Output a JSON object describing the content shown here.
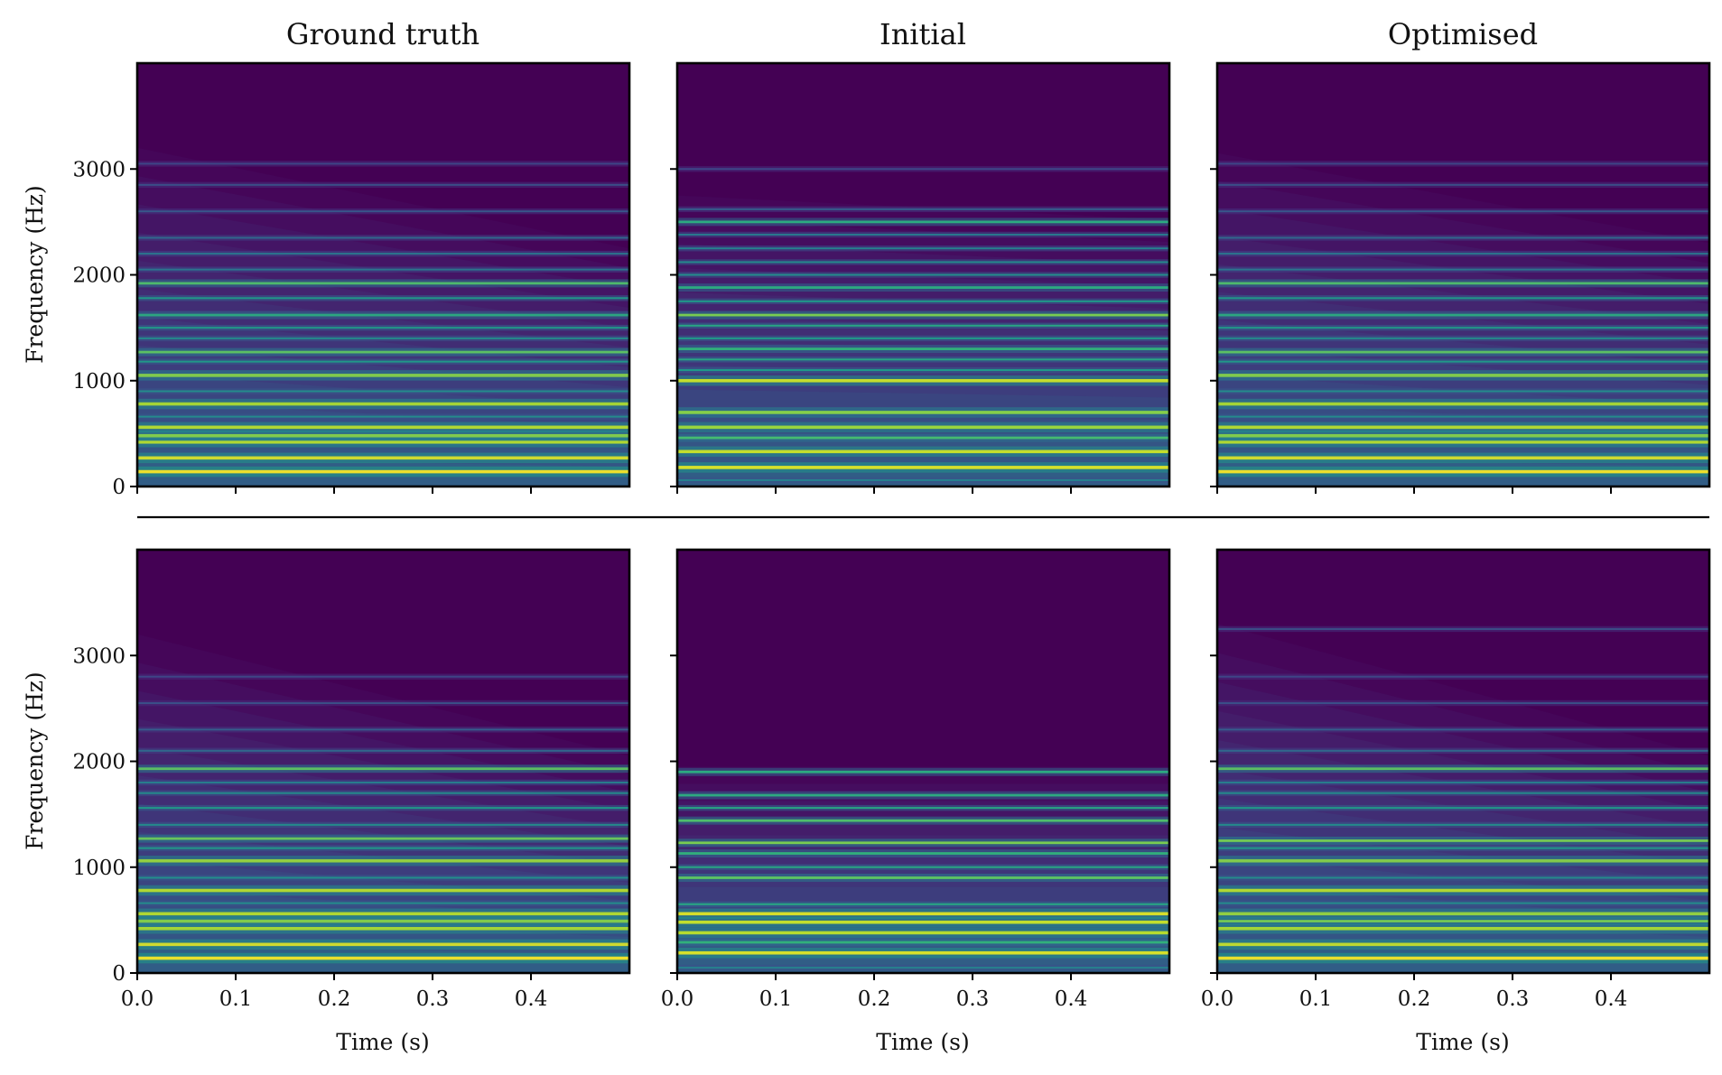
{
  "chart_data": {
    "type": "heatmap",
    "description": "Spectrogram comparison grid (2 examples x 3 columns)",
    "columns": [
      "Ground truth",
      "Initial",
      "Optimised"
    ],
    "xlabel": "Time (s)",
    "ylabel": "Frequency (Hz)",
    "xlim": [
      0,
      0.5
    ],
    "ylim": [
      0,
      4000
    ],
    "xticks": [
      0.0,
      0.1,
      0.2,
      0.3,
      0.4
    ],
    "xtick_labels": [
      "0.0",
      "0.1",
      "0.2",
      "0.3",
      "0.4"
    ],
    "yticks": [
      0,
      1000,
      2000,
      3000
    ],
    "ytick_labels": [
      "0",
      "1000",
      "2000",
      "3000"
    ],
    "colormap": "viridis",
    "background_color": "#440154",
    "row_separator": true,
    "panels": [
      {
        "row": 1,
        "column": "Ground truth",
        "decay": true,
        "cutoff_start_hz": 3200,
        "cutoff_end_hz": 2250,
        "harmonics": [
          {
            "f": 140,
            "v": 1.0
          },
          {
            "f": 270,
            "v": 0.95
          },
          {
            "f": 420,
            "v": 0.9
          },
          {
            "f": 480,
            "v": 0.82
          },
          {
            "f": 560,
            "v": 0.9
          },
          {
            "f": 660,
            "v": 0.5
          },
          {
            "f": 780,
            "v": 0.88
          },
          {
            "f": 900,
            "v": 0.5
          },
          {
            "f": 1050,
            "v": 0.82
          },
          {
            "f": 1180,
            "v": 0.55
          },
          {
            "f": 1270,
            "v": 0.75
          },
          {
            "f": 1400,
            "v": 0.5
          },
          {
            "f": 1500,
            "v": 0.55
          },
          {
            "f": 1620,
            "v": 0.62
          },
          {
            "f": 1780,
            "v": 0.55
          },
          {
            "f": 1920,
            "v": 0.72
          },
          {
            "f": 2050,
            "v": 0.4
          },
          {
            "f": 2200,
            "v": 0.4
          },
          {
            "f": 2350,
            "v": 0.35
          },
          {
            "f": 2600,
            "v": 0.28
          },
          {
            "f": 2850,
            "v": 0.25
          },
          {
            "f": 3050,
            "v": 0.22
          }
        ]
      },
      {
        "row": 1,
        "column": "Initial",
        "decay": false,
        "cutoff_start_hz": 2750,
        "cutoff_end_hz": 2520,
        "harmonics": [
          {
            "f": 60,
            "v": 0.45
          },
          {
            "f": 180,
            "v": 0.95
          },
          {
            "f": 330,
            "v": 0.92
          },
          {
            "f": 460,
            "v": 0.7
          },
          {
            "f": 560,
            "v": 0.85
          },
          {
            "f": 700,
            "v": 0.82
          },
          {
            "f": 1000,
            "v": 0.92
          },
          {
            "f": 1100,
            "v": 0.55
          },
          {
            "f": 1200,
            "v": 0.6
          },
          {
            "f": 1300,
            "v": 0.65
          },
          {
            "f": 1400,
            "v": 0.55
          },
          {
            "f": 1520,
            "v": 0.6
          },
          {
            "f": 1620,
            "v": 0.8
          },
          {
            "f": 1750,
            "v": 0.55
          },
          {
            "f": 1880,
            "v": 0.62
          },
          {
            "f": 2000,
            "v": 0.5
          },
          {
            "f": 2120,
            "v": 0.48
          },
          {
            "f": 2250,
            "v": 0.45
          },
          {
            "f": 2380,
            "v": 0.42
          },
          {
            "f": 2500,
            "v": 0.62
          },
          {
            "f": 2620,
            "v": 0.3
          },
          {
            "f": 3000,
            "v": 0.22
          }
        ]
      },
      {
        "row": 1,
        "column": "Optimised",
        "decay": true,
        "cutoff_start_hz": 3150,
        "cutoff_end_hz": 2300,
        "harmonics": [
          {
            "f": 140,
            "v": 1.0
          },
          {
            "f": 270,
            "v": 0.95
          },
          {
            "f": 420,
            "v": 0.9
          },
          {
            "f": 480,
            "v": 0.82
          },
          {
            "f": 560,
            "v": 0.9
          },
          {
            "f": 660,
            "v": 0.5
          },
          {
            "f": 780,
            "v": 0.88
          },
          {
            "f": 900,
            "v": 0.5
          },
          {
            "f": 1050,
            "v": 0.82
          },
          {
            "f": 1180,
            "v": 0.55
          },
          {
            "f": 1270,
            "v": 0.75
          },
          {
            "f": 1400,
            "v": 0.5
          },
          {
            "f": 1500,
            "v": 0.55
          },
          {
            "f": 1620,
            "v": 0.62
          },
          {
            "f": 1780,
            "v": 0.55
          },
          {
            "f": 1920,
            "v": 0.72
          },
          {
            "f": 2050,
            "v": 0.4
          },
          {
            "f": 2200,
            "v": 0.4
          },
          {
            "f": 2350,
            "v": 0.35
          },
          {
            "f": 2600,
            "v": 0.28
          },
          {
            "f": 2850,
            "v": 0.25
          },
          {
            "f": 3050,
            "v": 0.22
          }
        ]
      },
      {
        "row": 2,
        "column": "Ground truth",
        "decay": true,
        "cutoff_start_hz": 3200,
        "cutoff_end_hz": 2050,
        "harmonics": [
          {
            "f": 140,
            "v": 1.0
          },
          {
            "f": 270,
            "v": 0.95
          },
          {
            "f": 420,
            "v": 0.88
          },
          {
            "f": 490,
            "v": 0.82
          },
          {
            "f": 560,
            "v": 0.9
          },
          {
            "f": 660,
            "v": 0.5
          },
          {
            "f": 780,
            "v": 0.9
          },
          {
            "f": 900,
            "v": 0.52
          },
          {
            "f": 1060,
            "v": 0.85
          },
          {
            "f": 1180,
            "v": 0.55
          },
          {
            "f": 1270,
            "v": 0.78
          },
          {
            "f": 1400,
            "v": 0.5
          },
          {
            "f": 1560,
            "v": 0.55
          },
          {
            "f": 1700,
            "v": 0.5
          },
          {
            "f": 1800,
            "v": 0.45
          },
          {
            "f": 1930,
            "v": 0.75
          },
          {
            "f": 2100,
            "v": 0.35
          },
          {
            "f": 2300,
            "v": 0.3
          },
          {
            "f": 2550,
            "v": 0.25
          },
          {
            "f": 2800,
            "v": 0.22
          }
        ]
      },
      {
        "row": 2,
        "column": "Initial",
        "decay": false,
        "cutoff_start_hz": 1950,
        "cutoff_end_hz": 1950,
        "harmonics": [
          {
            "f": 50,
            "v": 0.45
          },
          {
            "f": 190,
            "v": 0.95
          },
          {
            "f": 290,
            "v": 0.65
          },
          {
            "f": 380,
            "v": 0.9
          },
          {
            "f": 480,
            "v": 0.92
          },
          {
            "f": 560,
            "v": 0.95
          },
          {
            "f": 650,
            "v": 0.6
          },
          {
            "f": 900,
            "v": 0.75
          },
          {
            "f": 1000,
            "v": 0.6
          },
          {
            "f": 1130,
            "v": 0.65
          },
          {
            "f": 1230,
            "v": 0.8
          },
          {
            "f": 1440,
            "v": 0.72
          },
          {
            "f": 1560,
            "v": 0.6
          },
          {
            "f": 1680,
            "v": 0.62
          },
          {
            "f": 1900,
            "v": 0.62
          }
        ]
      },
      {
        "row": 2,
        "column": "Optimised",
        "decay": true,
        "cutoff_start_hz": 3300,
        "cutoff_end_hz": 2050,
        "harmonics": [
          {
            "f": 140,
            "v": 1.0
          },
          {
            "f": 270,
            "v": 0.92
          },
          {
            "f": 420,
            "v": 0.88
          },
          {
            "f": 490,
            "v": 0.8
          },
          {
            "f": 560,
            "v": 0.85
          },
          {
            "f": 660,
            "v": 0.5
          },
          {
            "f": 780,
            "v": 0.9
          },
          {
            "f": 900,
            "v": 0.5
          },
          {
            "f": 1060,
            "v": 0.82
          },
          {
            "f": 1180,
            "v": 0.55
          },
          {
            "f": 1250,
            "v": 0.8
          },
          {
            "f": 1400,
            "v": 0.5
          },
          {
            "f": 1560,
            "v": 0.55
          },
          {
            "f": 1700,
            "v": 0.5
          },
          {
            "f": 1800,
            "v": 0.45
          },
          {
            "f": 1930,
            "v": 0.75
          },
          {
            "f": 2100,
            "v": 0.35
          },
          {
            "f": 2300,
            "v": 0.3
          },
          {
            "f": 2550,
            "v": 0.25
          },
          {
            "f": 2800,
            "v": 0.22
          },
          {
            "f": 3250,
            "v": 0.25
          }
        ]
      }
    ]
  }
}
